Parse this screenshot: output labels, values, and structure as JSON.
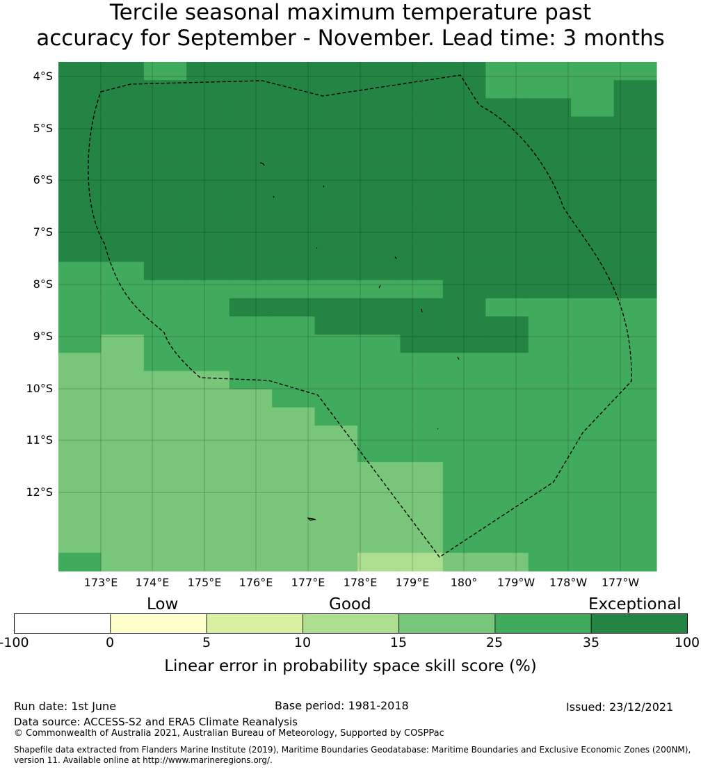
{
  "title": {
    "line1": "Tercile seasonal maximum temperature past",
    "line2": "accuracy for September - November. Lead time: 3 months"
  },
  "map": {
    "lat_labels": [
      "4°S",
      "5°S",
      "6°S",
      "7°S",
      "8°S",
      "9°S",
      "10°S",
      "11°S",
      "12°S"
    ],
    "lon_labels": [
      "173°E",
      "174°E",
      "175°E",
      "176°E",
      "177°E",
      "178°E",
      "179°E",
      "180°",
      "179°W",
      "178°W",
      "177°W"
    ],
    "gridlines": true,
    "boundary_line": "dashed",
    "cell_colors_by_category": [
      "#ffffcc",
      "#d9f0a3",
      "#addd8e",
      "#78c679",
      "#41ab5d",
      "#238443"
    ],
    "skill_grid_categories": [
      [
        5,
        5,
        4,
        5,
        5,
        5,
        5,
        5,
        5,
        5,
        4,
        4,
        4,
        4
      ],
      [
        5,
        5,
        5,
        5,
        5,
        5,
        5,
        5,
        5,
        5,
        4,
        4,
        4,
        5
      ],
      [
        5,
        5,
        5,
        5,
        5,
        5,
        5,
        5,
        5,
        5,
        5,
        5,
        4,
        5
      ],
      [
        5,
        5,
        5,
        5,
        5,
        5,
        5,
        5,
        5,
        5,
        5,
        5,
        5,
        5
      ],
      [
        5,
        5,
        5,
        5,
        5,
        5,
        5,
        5,
        5,
        5,
        5,
        5,
        5,
        5
      ],
      [
        5,
        5,
        5,
        5,
        5,
        5,
        5,
        5,
        5,
        5,
        5,
        5,
        5,
        5
      ],
      [
        5,
        5,
        5,
        5,
        5,
        5,
        5,
        5,
        5,
        5,
        5,
        5,
        5,
        5
      ],
      [
        5,
        5,
        5,
        5,
        5,
        5,
        5,
        5,
        5,
        5,
        5,
        5,
        5,
        5
      ],
      [
        5,
        5,
        5,
        5,
        5,
        5,
        5,
        5,
        5,
        5,
        5,
        5,
        5,
        5
      ],
      [
        5,
        5,
        5,
        5,
        5,
        5,
        5,
        5,
        5,
        5,
        5,
        5,
        5,
        5
      ],
      [
        5,
        5,
        5,
        5,
        5,
        5,
        5,
        5,
        5,
        5,
        5,
        5,
        5,
        5
      ],
      [
        4,
        4,
        5,
        5,
        5,
        5,
        5,
        5,
        5,
        5,
        5,
        5,
        5,
        5
      ],
      [
        4,
        4,
        4,
        4,
        4,
        4,
        4,
        4,
        4,
        5,
        5,
        5,
        5,
        5
      ],
      [
        4,
        4,
        4,
        4,
        5,
        5,
        5,
        5,
        5,
        5,
        4,
        4,
        4,
        4
      ],
      [
        4,
        4,
        4,
        4,
        4,
        4,
        5,
        5,
        5,
        5,
        5,
        4,
        4,
        4
      ],
      [
        4,
        3,
        4,
        4,
        4,
        4,
        4,
        4,
        5,
        5,
        5,
        4,
        4,
        4
      ],
      [
        3,
        3,
        4,
        4,
        4,
        4,
        4,
        4,
        4,
        4,
        4,
        4,
        4,
        4
      ],
      [
        3,
        3,
        3,
        3,
        4,
        4,
        4,
        4,
        4,
        4,
        4,
        4,
        4,
        4
      ],
      [
        3,
        3,
        3,
        3,
        3,
        4,
        4,
        4,
        4,
        4,
        4,
        4,
        4,
        4
      ],
      [
        3,
        3,
        3,
        3,
        3,
        3,
        4,
        4,
        4,
        4,
        4,
        4,
        4,
        4
      ],
      [
        3,
        3,
        3,
        3,
        3,
        3,
        3,
        4,
        4,
        4,
        4,
        4,
        4,
        4
      ],
      [
        3,
        3,
        3,
        3,
        3,
        3,
        3,
        4,
        4,
        4,
        4,
        4,
        4,
        4
      ],
      [
        3,
        3,
        3,
        3,
        3,
        3,
        3,
        3,
        3,
        4,
        4,
        4,
        4,
        4
      ],
      [
        3,
        3,
        3,
        3,
        3,
        3,
        3,
        3,
        3,
        4,
        4,
        4,
        4,
        4
      ],
      [
        3,
        3,
        3,
        3,
        3,
        3,
        3,
        3,
        3,
        4,
        4,
        4,
        4,
        4
      ],
      [
        3,
        3,
        3,
        3,
        3,
        3,
        3,
        3,
        3,
        4,
        4,
        4,
        4,
        4
      ],
      [
        3,
        3,
        3,
        3,
        3,
        3,
        3,
        3,
        3,
        4,
        4,
        4,
        4,
        4
      ],
      [
        4,
        3,
        3,
        3,
        3,
        3,
        3,
        2,
        2,
        3,
        3,
        4,
        4,
        4
      ]
    ]
  },
  "colorbar": {
    "categories": [
      "Low",
      "Good",
      "Exceptional"
    ],
    "ticks": [
      "-100",
      "0",
      "5",
      "10",
      "15",
      "25",
      "35",
      "100"
    ],
    "colors": [
      "#ffffff",
      "#ffffcc",
      "#d9f0a3",
      "#addd8e",
      "#78c679",
      "#41ab5d",
      "#238443"
    ],
    "label": "Linear error in probability space skill score (%)"
  },
  "footer": {
    "run_date": "Run date: 1st June",
    "base_period": "Base period: 1981-2018",
    "issued": "Issued: 23/12/2021",
    "data_source": "Data source: ACCESS-S2 and ERA5 Climate Reanalysis",
    "copyright": "© Commonwealth of Australia 2021, Australian Bureau of Meteorology, Supported by COSPPac",
    "shapefile": "Shapefile data extracted from Flanders Marine Institute (2019), Maritime Boundaries Geodatabase: Maritime Boundaries and Exclusive Economic Zones (200NM), version 11. Available online at http://www.marineregions.org/."
  }
}
